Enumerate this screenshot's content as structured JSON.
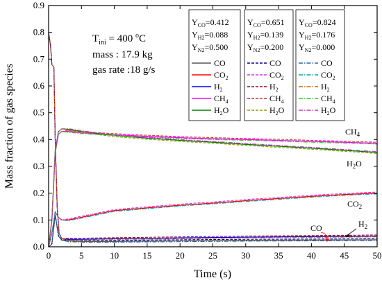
{
  "chart_data": {
    "type": "line",
    "xlabel": "Time (s)",
    "ylabel": "Mass fraction of gas species",
    "xlim": [
      0,
      50
    ],
    "ylim": [
      0,
      0.9
    ],
    "x_ticks": [
      "0",
      "5",
      "10",
      "15",
      "20",
      "25",
      "30",
      "35",
      "40",
      "45",
      "50"
    ],
    "y_ticks": [
      "0.0",
      "0.1",
      "0.2",
      "0.3",
      "0.4",
      "0.5",
      "0.6",
      "0.7",
      "0.8",
      "0.9"
    ],
    "grid": false,
    "annotation": {
      "line1": "T",
      "line1_sub": "ini",
      "line1_rest": " = 400 ",
      "line1_sup": "o",
      "line1_unit": "C",
      "line2": "mass : 17.9 kg",
      "line3": "gas rate :18 g/s"
    },
    "curve_labels": {
      "ch4": "CH",
      "ch4_sub": "4",
      "h2o": "H",
      "h2o_sub": "2",
      "h2o_rest": "O",
      "co2": "CO",
      "co2_sub": "2",
      "co": "CO",
      "h2": "H",
      "h2_sub": "2"
    },
    "legend_groups": [
      {
        "header": [
          {
            "main": "Y",
            "sub": "CO",
            "rest": "=0.412"
          },
          {
            "main": "Y",
            "sub": "H2",
            "rest": "=0.088"
          },
          {
            "main": "Y",
            "sub": "N2",
            "rest": "=0.500"
          }
        ],
        "dash": "",
        "entries": [
          {
            "main": "CO",
            "sub": "",
            "rest": "",
            "color": "#555555"
          },
          {
            "main": "CO",
            "sub": "2",
            "rest": "",
            "color": "#ff0000"
          },
          {
            "main": "H",
            "sub": "2",
            "rest": "",
            "color": "#0000ff"
          },
          {
            "main": "CH",
            "sub": "4",
            "rest": "",
            "color": "#ff00ff"
          },
          {
            "main": "H",
            "sub": "2",
            "rest": "O",
            "color": "#008000"
          }
        ]
      },
      {
        "header": [
          {
            "main": "Y",
            "sub": "CO",
            "rest": "=0.651"
          },
          {
            "main": "Y",
            "sub": "H2",
            "rest": "=0.139"
          },
          {
            "main": "Y",
            "sub": "N2",
            "rest": "=0.200"
          }
        ],
        "dash": "4,2",
        "entries": [
          {
            "main": "CO",
            "sub": "",
            "rest": "",
            "color": "#000099"
          },
          {
            "main": "CO",
            "sub": "2",
            "rest": "",
            "color": "#cc33ff"
          },
          {
            "main": "H",
            "sub": "2",
            "rest": "",
            "color": "#990033"
          },
          {
            "main": "CH",
            "sub": "4",
            "rest": "",
            "color": "#cc3333"
          },
          {
            "main": "H",
            "sub": "2",
            "rest": "O",
            "color": "#999900"
          }
        ]
      },
      {
        "header": [
          {
            "main": "Y",
            "sub": "CO",
            "rest": "=0.824"
          },
          {
            "main": "Y",
            "sub": "H2",
            "rest": "=0.176"
          },
          {
            "main": "Y",
            "sub": "N2",
            "rest": "=0.000"
          }
        ],
        "dash": "6,2,1.5,2",
        "entries": [
          {
            "main": "CO",
            "sub": "",
            "rest": "",
            "color": "#336699"
          },
          {
            "main": "CO",
            "sub": "2",
            "rest": "",
            "color": "#00aaaa"
          },
          {
            "main": "H",
            "sub": "2",
            "rest": "",
            "color": "#cc6600"
          },
          {
            "main": "CH",
            "sub": "4",
            "rest": "",
            "color": "#33cc33"
          },
          {
            "main": "H",
            "sub": "2",
            "rest": "O",
            "color": "#cc33cc"
          }
        ]
      }
    ],
    "series": [
      {
        "key": "CO",
        "x": [
          0,
          0.5,
          1,
          1.5,
          2,
          3,
          5,
          10,
          20,
          30,
          40,
          50
        ],
        "y": [
          0,
          0.01,
          0.12,
          0.04,
          0.025,
          0.022,
          0.02,
          0.02,
          0.022,
          0.024,
          0.025,
          0.026
        ]
      },
      {
        "key": "CO2",
        "x": [
          0,
          0.5,
          1,
          1.5,
          2,
          3,
          5,
          7,
          10,
          15,
          20,
          25,
          30,
          35,
          40,
          45,
          50
        ],
        "y": [
          0,
          0.05,
          0.13,
          0.11,
          0.1,
          0.1,
          0.11,
          0.12,
          0.135,
          0.145,
          0.155,
          0.163,
          0.172,
          0.18,
          0.188,
          0.195,
          0.2
        ]
      },
      {
        "key": "H2",
        "x": [
          0,
          0.3,
          0.5,
          0.8,
          1,
          1.3,
          1.6,
          2,
          3,
          5,
          10,
          20,
          30,
          40,
          50
        ],
        "y": [
          0.8,
          0.75,
          0.68,
          0.67,
          0.4,
          0.15,
          0.05,
          0.03,
          0.028,
          0.028,
          0.03,
          0.033,
          0.036,
          0.038,
          0.04
        ]
      },
      {
        "key": "CH4",
        "x": [
          0,
          0.5,
          1,
          1.5,
          2,
          3,
          5,
          10,
          15,
          20,
          25,
          30,
          35,
          40,
          45,
          50
        ],
        "y": [
          0,
          0.1,
          0.35,
          0.42,
          0.43,
          0.43,
          0.425,
          0.418,
          0.412,
          0.407,
          0.403,
          0.4,
          0.397,
          0.393,
          0.39,
          0.386
        ]
      },
      {
        "key": "H2O",
        "x": [
          0,
          0.5,
          1,
          1.5,
          2,
          3,
          5,
          10,
          15,
          20,
          25,
          30,
          35,
          40,
          45,
          50
        ],
        "y": [
          0,
          0.1,
          0.36,
          0.43,
          0.44,
          0.438,
          0.43,
          0.415,
          0.405,
          0.397,
          0.39,
          0.382,
          0.375,
          0.368,
          0.36,
          0.352
        ]
      }
    ]
  }
}
